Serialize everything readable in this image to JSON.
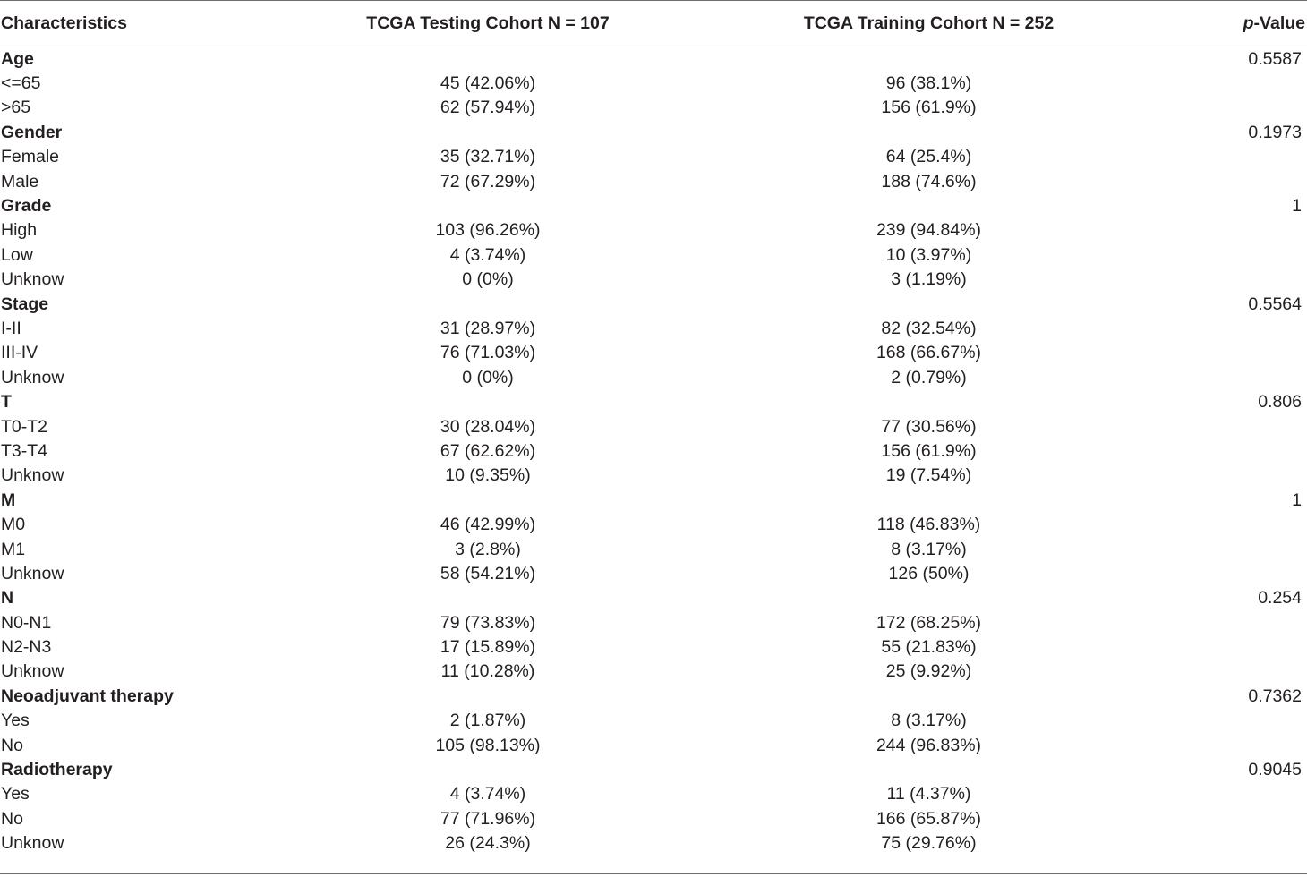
{
  "header": {
    "characteristics": "Characteristics",
    "testing": "TCGA Testing Cohort N = 107",
    "training": "TCGA Training Cohort N = 252",
    "pvalue_italic": "p",
    "pvalue_rest": "-Value"
  },
  "groups": [
    {
      "label": "Age",
      "p": "0.5587",
      "rows": [
        {
          "label": "<=65",
          "testing": "45 (42.06%)",
          "training": "96 (38.1%)"
        },
        {
          "label": ">65",
          "testing": "62 (57.94%)",
          "training": "156 (61.9%)"
        }
      ]
    },
    {
      "label": "Gender",
      "p": "0.1973",
      "rows": [
        {
          "label": "Female",
          "testing": "35 (32.71%)",
          "training": "64 (25.4%)"
        },
        {
          "label": "Male",
          "testing": "72 (67.29%)",
          "training": "188 (74.6%)"
        }
      ]
    },
    {
      "label": "Grade",
      "p": "1",
      "rows": [
        {
          "label": "High",
          "testing": "103 (96.26%)",
          "training": "239 (94.84%)"
        },
        {
          "label": "Low",
          "testing": "4 (3.74%)",
          "training": "10 (3.97%)"
        },
        {
          "label": "Unknow",
          "testing": "0 (0%)",
          "training": "3 (1.19%)"
        }
      ]
    },
    {
      "label": "Stage",
      "p": "0.5564",
      "rows": [
        {
          "label": "I-II",
          "testing": "31 (28.97%)",
          "training": "82 (32.54%)"
        },
        {
          "label": "III-IV",
          "testing": "76 (71.03%)",
          "training": "168 (66.67%)"
        },
        {
          "label": "Unknow",
          "testing": "0 (0%)",
          "training": "2 (0.79%)"
        }
      ]
    },
    {
      "label": "T",
      "p": "0.806",
      "rows": [
        {
          "label": "T0-T2",
          "testing": "30 (28.04%)",
          "training": "77 (30.56%)"
        },
        {
          "label": "T3-T4",
          "testing": "67 (62.62%)",
          "training": "156 (61.9%)"
        },
        {
          "label": "Unknow",
          "testing": "10 (9.35%)",
          "training": "19 (7.54%)"
        }
      ]
    },
    {
      "label": "M",
      "p": "1",
      "rows": [
        {
          "label": "M0",
          "testing": "46 (42.99%)",
          "training": "118 (46.83%)"
        },
        {
          "label": "M1",
          "testing": "3 (2.8%)",
          "training": "8 (3.17%)"
        },
        {
          "label": "Unknow",
          "testing": "58 (54.21%)",
          "training": "126 (50%)"
        }
      ]
    },
    {
      "label": "N",
      "p": "0.254",
      "rows": [
        {
          "label": "N0-N1",
          "testing": "79 (73.83%)",
          "training": "172 (68.25%)"
        },
        {
          "label": "N2-N3",
          "testing": "17 (15.89%)",
          "training": "55 (21.83%)"
        },
        {
          "label": "Unknow",
          "testing": "11 (10.28%)",
          "training": "25 (9.92%)"
        }
      ]
    },
    {
      "label": "Neoadjuvant therapy",
      "p": "0.7362",
      "rows": [
        {
          "label": "Yes",
          "testing": "2 (1.87%)",
          "training": "8 (3.17%)"
        },
        {
          "label": "No",
          "testing": "105 (98.13%)",
          "training": "244 (96.83%)"
        }
      ]
    },
    {
      "label": "Radiotherapy",
      "p": "0.9045",
      "rows": [
        {
          "label": "Yes",
          "testing": "4 (3.74%)",
          "training": "11 (4.37%)"
        },
        {
          "label": "No",
          "testing": "77 (71.96%)",
          "training": "166 (65.87%)"
        },
        {
          "label": "Unknow",
          "testing": "26 (24.3%)",
          "training": "75 (29.76%)"
        }
      ]
    }
  ]
}
